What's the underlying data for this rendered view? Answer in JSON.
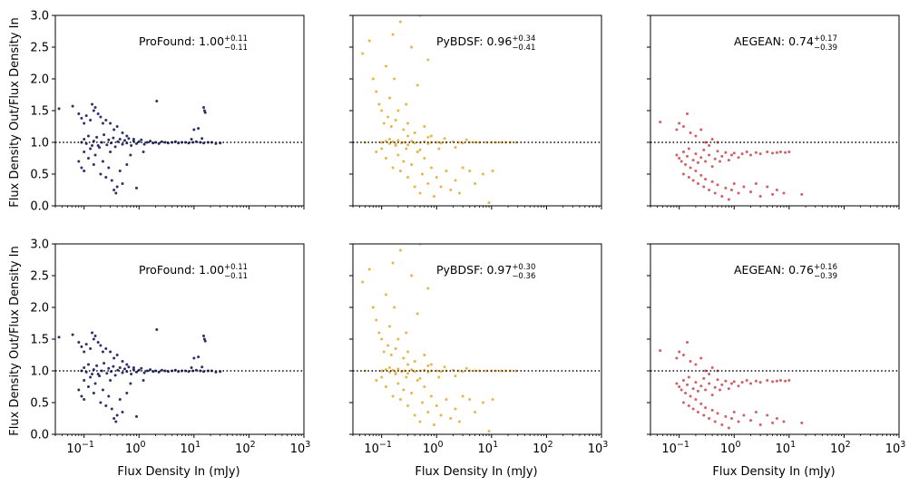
{
  "chart_data": {
    "type": "scatter",
    "layout": "2x3 grid of scatter panels, shared log x-axis and linear y-axis",
    "xlabel": "Flux Density In (mJy)",
    "ylabel": "Flux Density Out/Flux Density In",
    "xscale": "log",
    "xlim": [
      0.03,
      1000
    ],
    "ylim": [
      0,
      3
    ],
    "xticks": [
      {
        "value": 0.1,
        "base": "10",
        "exp": "−1"
      },
      {
        "value": 1,
        "base": "10",
        "exp": "0"
      },
      {
        "value": 10,
        "base": "10",
        "exp": "1"
      },
      {
        "value": 100,
        "base": "10",
        "exp": "2"
      },
      {
        "value": 1000,
        "base": "10",
        "exp": "3"
      }
    ],
    "yticks": [
      "0.0",
      "0.5",
      "1.0",
      "1.5",
      "2.0",
      "2.5",
      "3.0"
    ],
    "reference_line": {
      "y": 1.0,
      "style": "dotted",
      "color": "#000000"
    },
    "colors": {
      "ProFound": "#2e3168",
      "PyBDSF": "#e6b64c",
      "AEGEAN": "#d35f67"
    },
    "panels": [
      {
        "row": 0,
        "col": 0,
        "series": "ProFound",
        "label": "ProFound: 1.00",
        "sup": "+0.11",
        "sub": "−0.11"
      },
      {
        "row": 0,
        "col": 1,
        "series": "PyBDSF",
        "label": "PyBDSF: 0.96",
        "sup": "+0.34",
        "sub": "−0.41"
      },
      {
        "row": 0,
        "col": 2,
        "series": "AEGEAN",
        "label": "AEGEAN: 0.74",
        "sup": "+0.17",
        "sub": "−0.39"
      },
      {
        "row": 1,
        "col": 0,
        "series": "ProFound",
        "label": "ProFound: 1.00",
        "sup": "+0.11",
        "sub": "−0.11"
      },
      {
        "row": 1,
        "col": 1,
        "series": "PyBDSF",
        "label": "PyBDSF: 0.97",
        "sup": "+0.30",
        "sub": "−0.36"
      },
      {
        "row": 1,
        "col": 2,
        "series": "AEGEAN",
        "label": "AEGEAN: 0.76",
        "sup": "+0.16",
        "sub": "−0.39"
      }
    ],
    "series_points": {
      "ProFound": [
        [
          0.035,
          1.53
        ],
        [
          0.062,
          1.57
        ],
        [
          0.08,
          1.45
        ],
        [
          0.09,
          1.38
        ],
        [
          0.1,
          1.3
        ],
        [
          0.11,
          1.42
        ],
        [
          0.13,
          1.35
        ],
        [
          0.14,
          1.6
        ],
        [
          0.15,
          1.5
        ],
        [
          0.16,
          1.55
        ],
        [
          0.18,
          1.45
        ],
        [
          0.2,
          1.4
        ],
        [
          0.22,
          1.3
        ],
        [
          0.25,
          1.35
        ],
        [
          0.3,
          1.3
        ],
        [
          0.35,
          1.2
        ],
        [
          0.4,
          1.25
        ],
        [
          0.5,
          1.15
        ],
        [
          0.6,
          1.1
        ],
        [
          0.8,
          1.05
        ],
        [
          0.08,
          0.7
        ],
        [
          0.09,
          0.6
        ],
        [
          0.1,
          0.55
        ],
        [
          0.1,
          0.85
        ],
        [
          0.12,
          0.75
        ],
        [
          0.13,
          0.9
        ],
        [
          0.15,
          0.65
        ],
        [
          0.16,
          0.8
        ],
        [
          0.18,
          0.95
        ],
        [
          0.2,
          0.5
        ],
        [
          0.22,
          0.7
        ],
        [
          0.25,
          0.45
        ],
        [
          0.28,
          0.6
        ],
        [
          0.3,
          0.85
        ],
        [
          0.32,
          0.4
        ],
        [
          0.35,
          0.25
        ],
        [
          0.38,
          0.2
        ],
        [
          0.4,
          0.3
        ],
        [
          0.45,
          0.55
        ],
        [
          0.5,
          0.35
        ],
        [
          0.6,
          0.65
        ],
        [
          0.7,
          0.8
        ],
        [
          0.9,
          0.28
        ],
        [
          1.2,
          0.85
        ],
        [
          0.09,
          1.0
        ],
        [
          0.1,
          1.05
        ],
        [
          0.11,
          0.98
        ],
        [
          0.12,
          1.1
        ],
        [
          0.14,
          0.95
        ],
        [
          0.15,
          1.02
        ],
        [
          0.17,
          1.08
        ],
        [
          0.19,
          0.92
        ],
        [
          0.21,
          1.0
        ],
        [
          0.23,
          1.12
        ],
        [
          0.26,
          0.96
        ],
        [
          0.28,
          1.04
        ],
        [
          0.31,
          0.99
        ],
        [
          0.34,
          1.07
        ],
        [
          0.37,
          0.93
        ],
        [
          0.41,
          1.01
        ],
        [
          0.45,
          1.05
        ],
        [
          0.5,
          0.97
        ],
        [
          0.55,
          1.03
        ],
        [
          0.6,
          0.99
        ],
        [
          0.65,
          1.06
        ],
        [
          0.72,
          0.95
        ],
        [
          0.8,
          1.02
        ],
        [
          0.9,
          0.98
        ],
        [
          1.0,
          1.01
        ],
        [
          1.1,
          1.04
        ],
        [
          1.25,
          0.97
        ],
        [
          1.4,
          1.0
        ],
        [
          1.6,
          1.02
        ],
        [
          1.8,
          0.99
        ],
        [
          2.0,
          1.0
        ],
        [
          2.3,
          0.98
        ],
        [
          2.6,
          1.01
        ],
        [
          3.0,
          1.0
        ],
        [
          3.4,
          0.99
        ],
        [
          4.0,
          1.0
        ],
        [
          4.6,
          1.01
        ],
        [
          5.2,
          0.99
        ],
        [
          6.0,
          1.0
        ],
        [
          7.0,
          1.0
        ],
        [
          8.0,
          0.99
        ],
        [
          9.5,
          1.0
        ],
        [
          11,
          1.01
        ],
        [
          13,
          1.0
        ],
        [
          15,
          0.99
        ],
        [
          18,
          1.0
        ],
        [
          21,
          1.0
        ],
        [
          25,
          0.98
        ],
        [
          30,
          0.99
        ],
        [
          2.1,
          1.65
        ],
        [
          10,
          1.2
        ],
        [
          12,
          1.22
        ],
        [
          15,
          1.55
        ],
        [
          15.5,
          1.5
        ],
        [
          16,
          1.47
        ],
        [
          9,
          1.05
        ],
        [
          14,
          1.06
        ]
      ],
      "PyBDSF": [
        [
          0.045,
          2.4
        ],
        [
          0.06,
          2.6
        ],
        [
          0.07,
          2.0
        ],
        [
          0.08,
          1.8
        ],
        [
          0.09,
          1.6
        ],
        [
          0.1,
          1.5
        ],
        [
          0.11,
          1.3
        ],
        [
          0.12,
          2.2
        ],
        [
          0.13,
          1.4
        ],
        [
          0.14,
          1.7
        ],
        [
          0.15,
          1.25
        ],
        [
          0.16,
          2.7
        ],
        [
          0.17,
          2.0
        ],
        [
          0.18,
          1.35
        ],
        [
          0.2,
          1.5
        ],
        [
          0.22,
          2.9
        ],
        [
          0.25,
          1.2
        ],
        [
          0.28,
          1.6
        ],
        [
          0.3,
          1.3
        ],
        [
          0.35,
          2.5
        ],
        [
          0.4,
          1.15
        ],
        [
          0.45,
          1.9
        ],
        [
          0.5,
          3.0
        ],
        [
          0.6,
          1.25
        ],
        [
          0.7,
          2.3
        ],
        [
          0.8,
          1.1
        ],
        [
          0.05,
          1.0
        ],
        [
          0.08,
          0.85
        ],
        [
          0.1,
          0.9
        ],
        [
          0.12,
          0.75
        ],
        [
          0.14,
          1.05
        ],
        [
          0.16,
          0.6
        ],
        [
          0.18,
          0.95
        ],
        [
          0.2,
          0.8
        ],
        [
          0.22,
          0.55
        ],
        [
          0.25,
          0.7
        ],
        [
          0.28,
          0.9
        ],
        [
          0.3,
          0.45
        ],
        [
          0.35,
          0.65
        ],
        [
          0.4,
          0.3
        ],
        [
          0.45,
          0.85
        ],
        [
          0.5,
          0.2
        ],
        [
          0.55,
          0.5
        ],
        [
          0.6,
          0.75
        ],
        [
          0.7,
          0.35
        ],
        [
          0.8,
          0.6
        ],
        [
          0.9,
          0.15
        ],
        [
          1.0,
          0.45
        ],
        [
          1.2,
          0.3
        ],
        [
          1.5,
          0.55
        ],
        [
          1.8,
          0.25
        ],
        [
          2.2,
          0.4
        ],
        [
          2.6,
          0.2
        ],
        [
          3.0,
          0.6
        ],
        [
          4.0,
          0.55
        ],
        [
          5.0,
          0.35
        ],
        [
          7.0,
          0.5
        ],
        [
          9.0,
          0.05
        ],
        [
          10.5,
          0.55
        ],
        [
          0.1,
          1.0
        ],
        [
          0.12,
          1.02
        ],
        [
          0.14,
          0.98
        ],
        [
          0.16,
          1.01
        ],
        [
          0.18,
          0.97
        ],
        [
          0.2,
          1.03
        ],
        [
          0.23,
          0.99
        ],
        [
          0.26,
          1.0
        ],
        [
          0.3,
          0.96
        ],
        [
          0.35,
          1.02
        ],
        [
          0.4,
          0.99
        ],
        [
          0.5,
          1.0
        ],
        [
          0.6,
          1.01
        ],
        [
          0.7,
          0.98
        ],
        [
          0.8,
          1.0
        ],
        [
          1.0,
          1.0
        ],
        [
          1.2,
          0.99
        ],
        [
          1.5,
          1.0
        ],
        [
          2.0,
          1.01
        ],
        [
          2.5,
          1.0
        ],
        [
          3.0,
          0.99
        ],
        [
          4.0,
          1.0
        ],
        [
          5.0,
          1.0
        ],
        [
          6.0,
          1.0
        ],
        [
          8.0,
          1.0
        ],
        [
          10,
          1.0
        ],
        [
          12,
          1.0
        ],
        [
          15,
          1.0
        ],
        [
          18,
          1.0
        ],
        [
          22,
          1.0
        ],
        [
          28,
          1.0
        ],
        [
          0.3,
          1.1
        ],
        [
          0.5,
          0.88
        ],
        [
          0.7,
          1.08
        ],
        [
          1.1,
          0.9
        ],
        [
          1.4,
          1.06
        ],
        [
          2.2,
          0.92
        ],
        [
          3.5,
          1.04
        ]
      ],
      "AEGEAN": [
        [
          0.045,
          1.32
        ],
        [
          0.09,
          1.2
        ],
        [
          0.1,
          1.3
        ],
        [
          0.12,
          1.25
        ],
        [
          0.14,
          1.45
        ],
        [
          0.16,
          1.15
        ],
        [
          0.2,
          1.1
        ],
        [
          0.25,
          1.2
        ],
        [
          0.3,
          1.0
        ],
        [
          0.35,
          0.95
        ],
        [
          0.4,
          1.05
        ],
        [
          0.5,
          1.0
        ],
        [
          0.09,
          0.8
        ],
        [
          0.1,
          0.75
        ],
        [
          0.11,
          0.7
        ],
        [
          0.12,
          0.85
        ],
        [
          0.13,
          0.65
        ],
        [
          0.14,
          0.78
        ],
        [
          0.15,
          0.9
        ],
        [
          0.16,
          0.6
        ],
        [
          0.18,
          0.72
        ],
        [
          0.2,
          0.82
        ],
        [
          0.22,
          0.68
        ],
        [
          0.25,
          0.76
        ],
        [
          0.28,
          0.88
        ],
        [
          0.3,
          0.7
        ],
        [
          0.35,
          0.8
        ],
        [
          0.4,
          0.62
        ],
        [
          0.45,
          0.74
        ],
        [
          0.5,
          0.86
        ],
        [
          0.55,
          0.7
        ],
        [
          0.6,
          0.78
        ],
        [
          0.7,
          0.84
        ],
        [
          0.8,
          0.72
        ],
        [
          0.9,
          0.8
        ],
        [
          1.0,
          0.83
        ],
        [
          1.2,
          0.76
        ],
        [
          1.4,
          0.82
        ],
        [
          1.7,
          0.85
        ],
        [
          2.0,
          0.8
        ],
        [
          2.5,
          0.84
        ],
        [
          3.0,
          0.82
        ],
        [
          4.0,
          0.85
        ],
        [
          5.0,
          0.83
        ],
        [
          6.0,
          0.84
        ],
        [
          7.0,
          0.85
        ],
        [
          8.5,
          0.84
        ],
        [
          10,
          0.85
        ],
        [
          0.12,
          0.5
        ],
        [
          0.15,
          0.45
        ],
        [
          0.18,
          0.4
        ],
        [
          0.2,
          0.55
        ],
        [
          0.22,
          0.35
        ],
        [
          0.25,
          0.48
        ],
        [
          0.28,
          0.3
        ],
        [
          0.3,
          0.42
        ],
        [
          0.35,
          0.25
        ],
        [
          0.4,
          0.38
        ],
        [
          0.45,
          0.2
        ],
        [
          0.5,
          0.33
        ],
        [
          0.6,
          0.15
        ],
        [
          0.7,
          0.28
        ],
        [
          0.8,
          0.1
        ],
        [
          0.9,
          0.25
        ],
        [
          1.0,
          0.35
        ],
        [
          1.2,
          0.2
        ],
        [
          1.5,
          0.3
        ],
        [
          2.0,
          0.22
        ],
        [
          2.5,
          0.35
        ],
        [
          3.0,
          0.15
        ],
        [
          4.0,
          0.3
        ],
        [
          5.0,
          0.18
        ],
        [
          6.0,
          0.25
        ],
        [
          8.0,
          0.2
        ],
        [
          17,
          0.18
        ]
      ]
    }
  }
}
